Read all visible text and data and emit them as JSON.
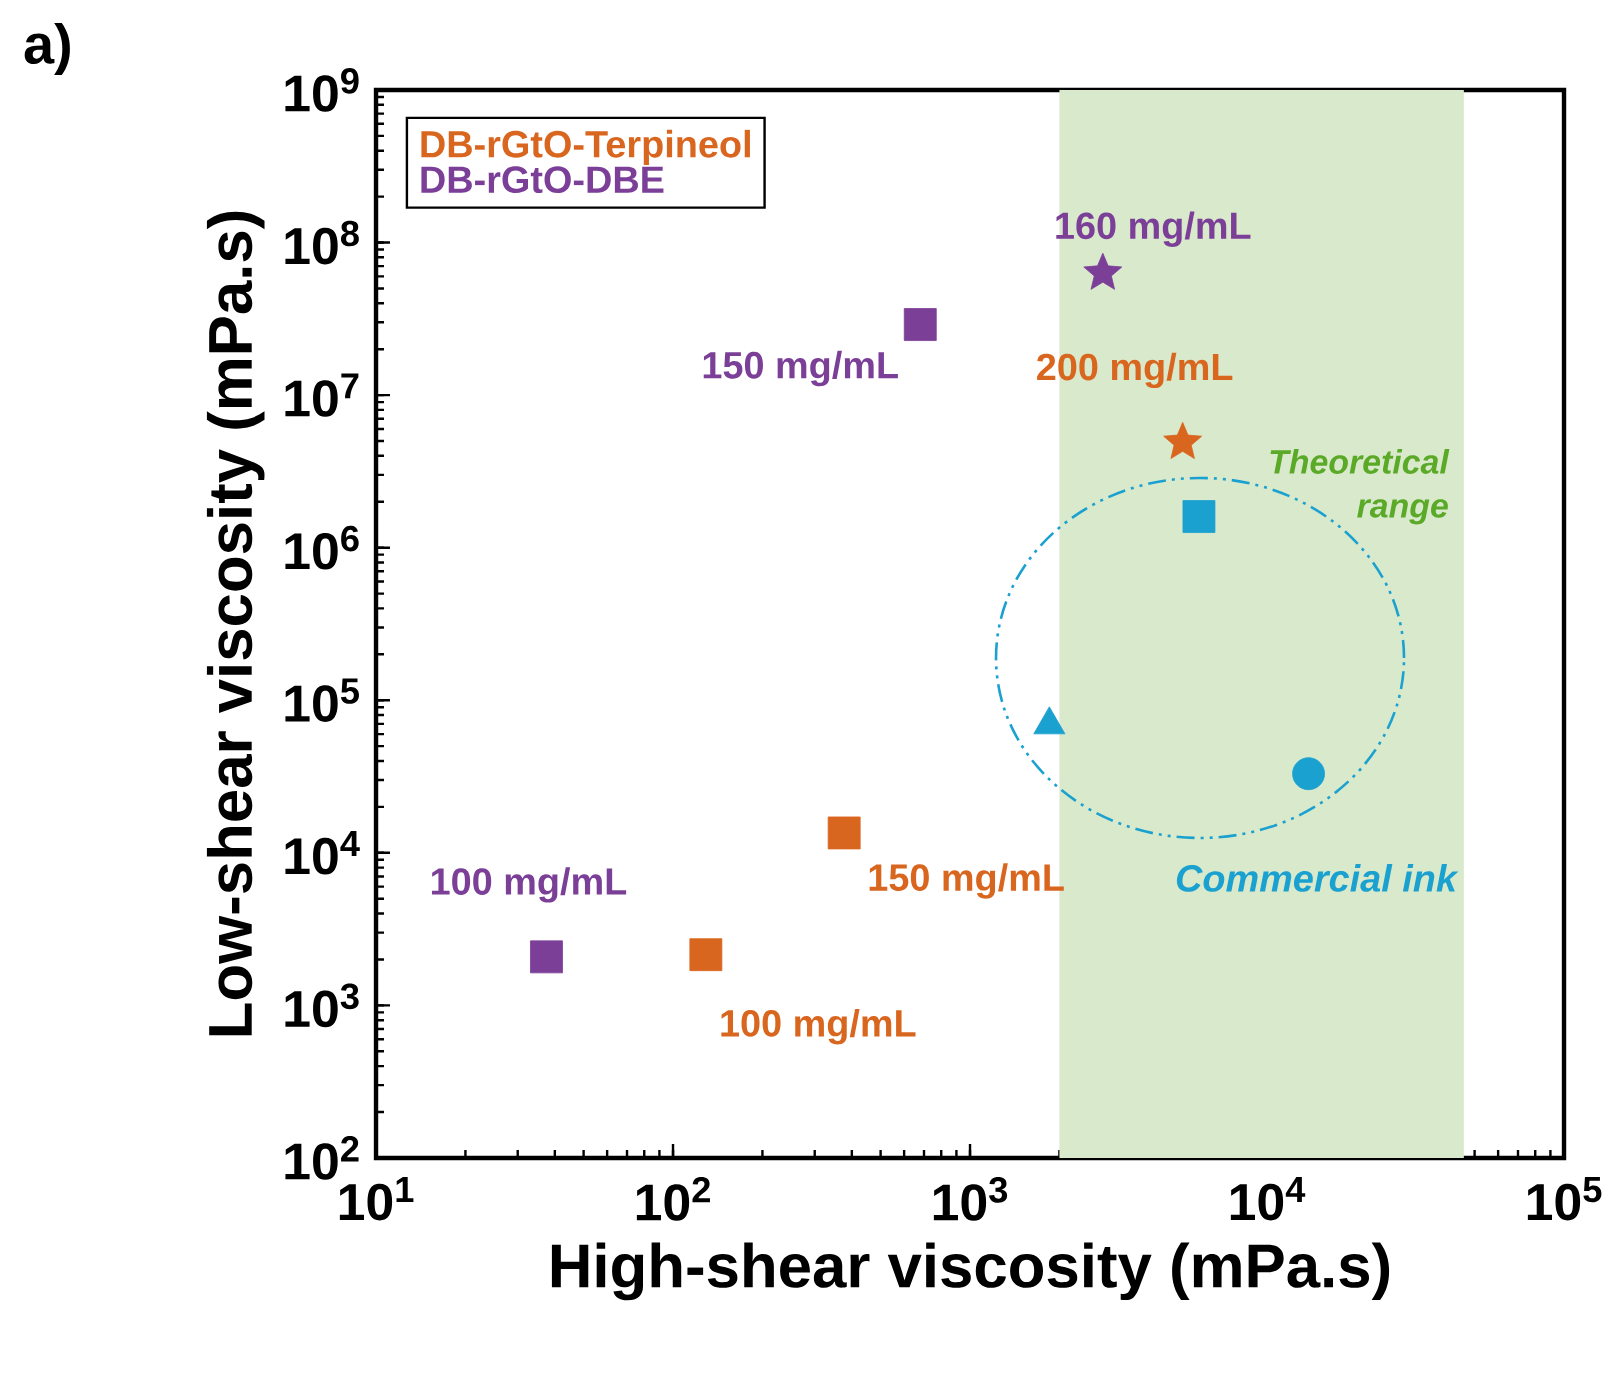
{
  "chart_data": {
    "type": "scatter",
    "xlabel": "High-shear viscosity (mPa.s)",
    "ylabel": "Low-shear viscosity (mPa.s)",
    "log": "xy",
    "grid": false,
    "legend": "top left",
    "xlim": [
      10,
      100000
    ],
    "ylim": [
      100,
      1000000000
    ],
    "xticks": [
      {
        "value": 10,
        "label": "10$^{1}$"
      },
      {
        "value": 100,
        "label": "10$^{2}$"
      },
      {
        "value": 1000,
        "label": "10$^{3}$"
      },
      {
        "value": 10000,
        "label": "10$^{4}$"
      },
      {
        "value": 100000,
        "label": "10$^{5}$"
      }
    ],
    "yticks": [
      {
        "value": 100,
        "label": "10$^{2}$"
      },
      {
        "value": 1000,
        "label": "10$^{3}$"
      },
      {
        "value": 10000,
        "label": "10$^{4}$"
      },
      {
        "value": 100000,
        "label": "10$^{5}$"
      },
      {
        "value": 1000000,
        "label": "10$^{6}$"
      },
      {
        "value": 10000000,
        "label": "10$^{7}$"
      },
      {
        "value": 100000000,
        "label": "10$^{8}$"
      },
      {
        "value": 1000000000,
        "label": "10$^{9}$"
      }
    ],
    "series": [
      {
        "name": "DB-rGtO-Terpineol",
        "color": "#d9661f",
        "marker": "square",
        "x": [
          129,
          377
        ],
        "values": [
          2150,
          13500
        ]
      },
      {
        "name": "DB-rGtO-DBE",
        "color": "#7b3f98",
        "marker": "square",
        "x": [
          37.5,
          680
        ],
        "values": [
          2080,
          29000000
        ]
      },
      {
        "color": "#d9661f",
        "marker": "star",
        "x": [
          5200
        ],
        "values": [
          4900000
        ]
      },
      {
        "color": "#7b3f98",
        "marker": "star",
        "x": [
          2800
        ],
        "values": [
          63000000
        ]
      },
      {
        "color": "#1ba1d0",
        "marker": "square",
        "x": [
          5900
        ],
        "values": [
          1600000
        ]
      },
      {
        "color": "#1ba1d0",
        "marker": "triangle",
        "x": [
          1850
        ],
        "values": [
          69000
        ]
      },
      {
        "color": "#1ba1d0",
        "marker": "circle",
        "x": [
          13800
        ],
        "values": [
          33000
        ]
      }
    ],
    "bands": [
      {
        "axis": "x",
        "from": 2000,
        "to": 46000,
        "label": "Theoretical range",
        "color": "#d9e9cc"
      }
    ],
    "annotations": [
      {
        "text": "160 mg/mL",
        "x": 2800,
        "y": 63000000
      },
      {
        "text": "150 mg/mL",
        "x": 680,
        "y": 29000000
      },
      {
        "text": "200 mg/mL",
        "x": 5200,
        "y": 4900000
      },
      {
        "text": "150 mg/mL",
        "x": 377,
        "y": 13500
      },
      {
        "text": "100 mg/mL",
        "x": 129,
        "y": 2150
      },
      {
        "text": "100 mg/mL",
        "x": 37.5,
        "y": 2080
      },
      "Commercial ink",
      "a)"
    ]
  }
}
